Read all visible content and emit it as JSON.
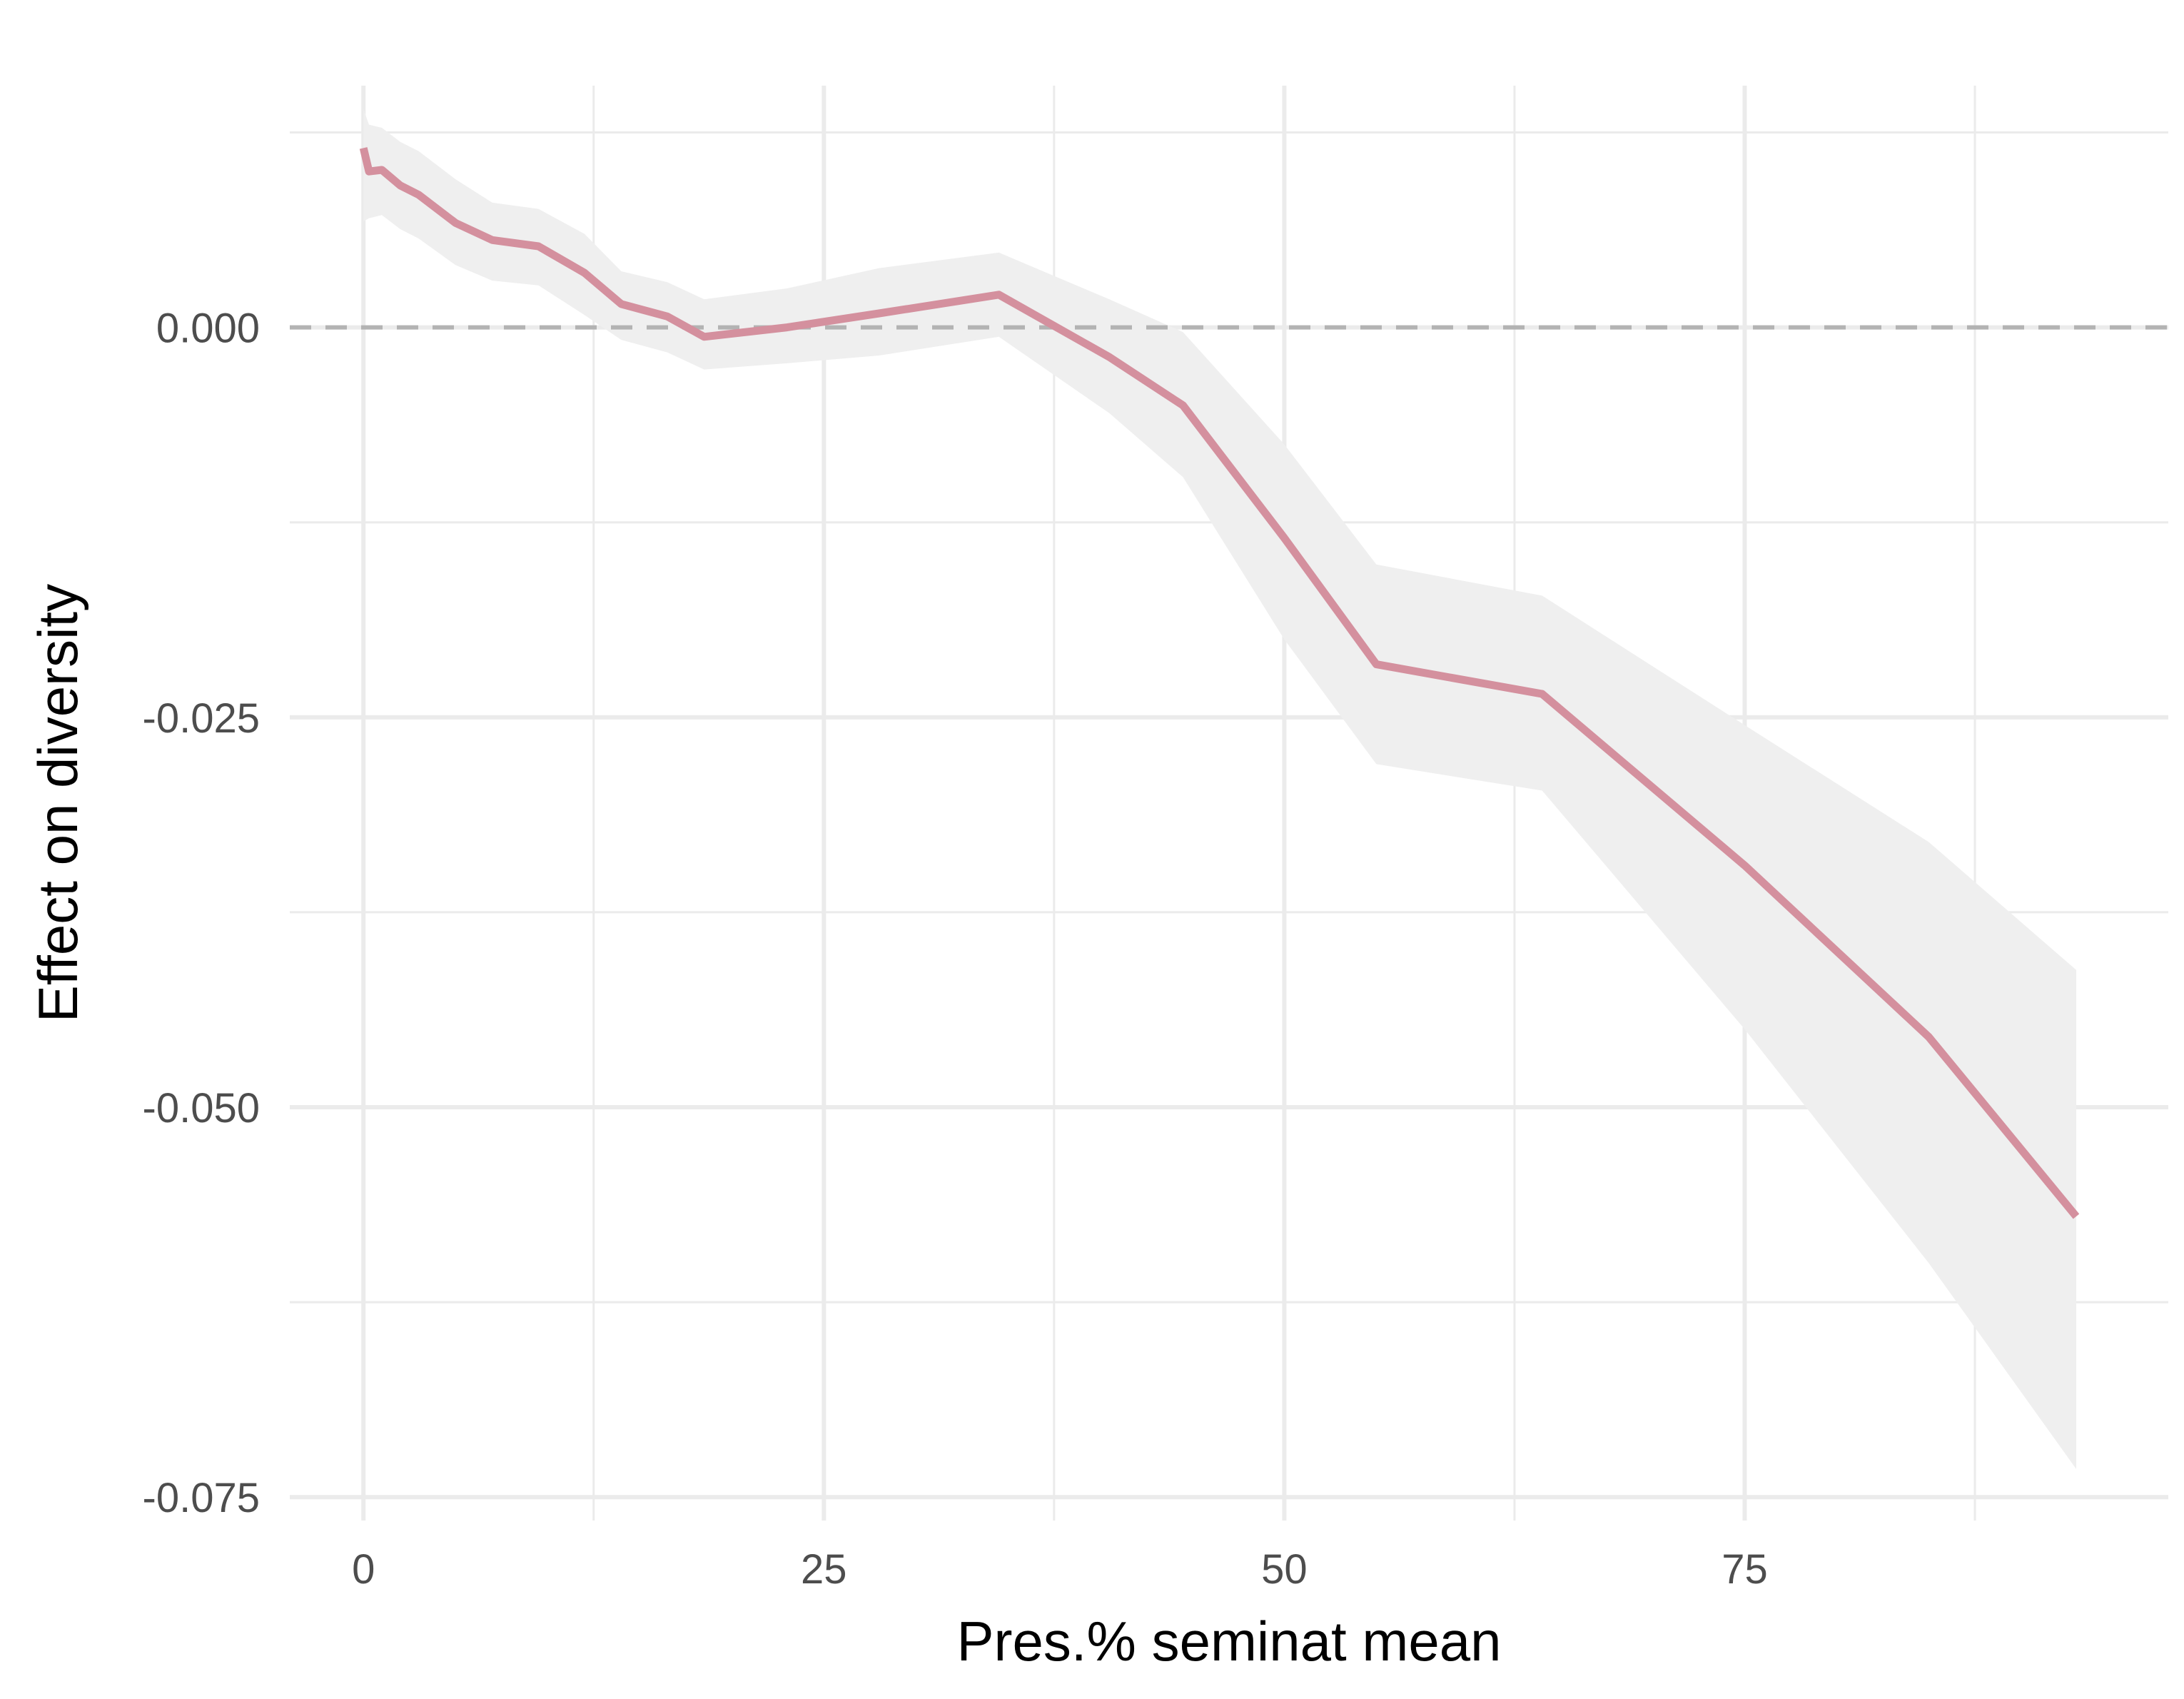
{
  "chart_data": {
    "type": "line",
    "title": "",
    "xlabel": "Pres.% seminat mean",
    "ylabel": "Effect on diversity",
    "xlim": [
      -4,
      98
    ],
    "ylim": [
      -0.0765,
      0.0155
    ],
    "x_ticks": [
      0,
      25,
      50,
      75
    ],
    "x_tick_labels": [
      "0",
      "25",
      "50",
      "75"
    ],
    "x_minor_ticks": [
      12.5,
      37.5,
      62.5,
      87.5
    ],
    "y_ticks": [
      0.0,
      -0.025,
      -0.05,
      -0.075
    ],
    "y_tick_labels": [
      "0.000",
      "-0.025",
      "-0.050",
      "-0.075"
    ],
    "y_minor_ticks": [
      0.0125,
      -0.0125,
      -0.0375,
      -0.0625
    ],
    "grid": true,
    "reference_line": {
      "y": 0,
      "style": "dashed",
      "color": "#b3b3b3"
    },
    "line_color": "#d4909e",
    "band_color": "#efefef",
    "series": [
      {
        "x": [
          0,
          0.3,
          1,
          2,
          3,
          5,
          7,
          9.5,
          12,
          14,
          16.5,
          18.5,
          23,
          28,
          34.5,
          40.5,
          44.5,
          50,
          55,
          64,
          75,
          85,
          93
        ],
        "y": [
          0.0115,
          0.01,
          0.0101,
          0.0091,
          0.0085,
          0.0067,
          0.0056,
          0.0052,
          0.0035,
          0.0015,
          0.0007,
          -0.0006,
          0.0,
          0.0009,
          0.0021,
          -0.0019,
          -0.005,
          -0.0135,
          -0.0216,
          -0.0235,
          -0.0345,
          -0.0455,
          -0.057
        ],
        "lower": [
          0.0068,
          0.007,
          0.0072,
          0.0063,
          0.0057,
          0.004,
          0.003,
          0.0027,
          0.0008,
          -0.0008,
          -0.0016,
          -0.0027,
          -0.0023,
          -0.0018,
          -0.0006,
          -0.0055,
          -0.0096,
          -0.02,
          -0.028,
          -0.0297,
          -0.045,
          -0.06,
          -0.0732
        ],
        "upper": [
          0.014,
          0.013,
          0.0128,
          0.0119,
          0.0113,
          0.0095,
          0.008,
          0.0076,
          0.006,
          0.0036,
          0.0029,
          0.0018,
          0.0025,
          0.0038,
          0.0048,
          0.0018,
          -0.0003,
          -0.0075,
          -0.0152,
          -0.0172,
          -0.0255,
          -0.033,
          -0.0412
        ]
      }
    ]
  }
}
